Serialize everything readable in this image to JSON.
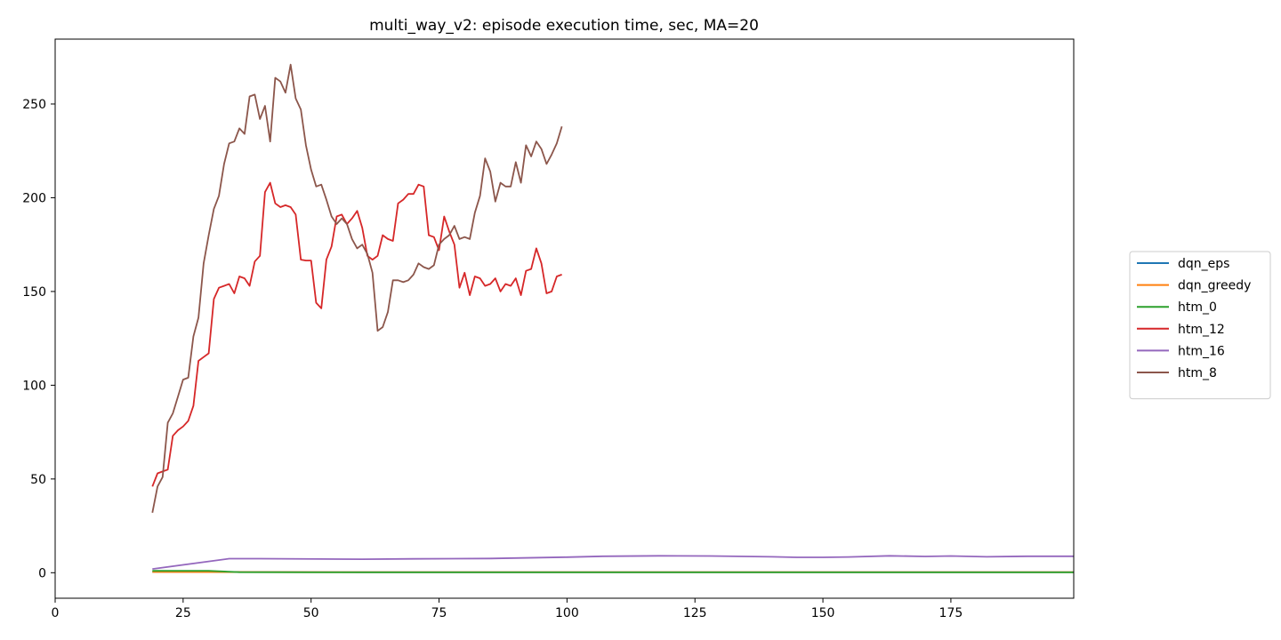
{
  "chart_data": {
    "type": "line",
    "title": "multi_way_v2: episode execution time, sec, MA=20",
    "xlabel": "",
    "ylabel": "",
    "xlim": [
      0,
      199
    ],
    "ylim": [
      -13.6,
      284.6
    ],
    "x_ticks": [
      0,
      25,
      50,
      75,
      100,
      125,
      150,
      175
    ],
    "y_ticks": [
      0,
      50,
      100,
      150,
      200,
      250
    ],
    "grid": false,
    "legend_position": "right",
    "series": [
      {
        "name": "dqn_eps",
        "color": "#1f77b4",
        "points": [
          [
            19,
            0.5
          ],
          [
            60,
            0.3
          ],
          [
            100,
            0.3
          ],
          [
            150,
            0.3
          ],
          [
            199,
            0.3
          ]
        ]
      },
      {
        "name": "dqn_greedy",
        "color": "#ff7f0e",
        "points": [
          [
            19,
            0.4
          ],
          [
            60,
            0.3
          ],
          [
            100,
            0.3
          ],
          [
            150,
            0.3
          ],
          [
            199,
            0.3
          ]
        ]
      },
      {
        "name": "htm_0",
        "color": "#2ca02c",
        "points": [
          [
            19,
            1.0
          ],
          [
            30,
            1.0
          ],
          [
            36,
            0.3
          ],
          [
            50,
            0.2
          ],
          [
            100,
            0.2
          ],
          [
            150,
            0.2
          ],
          [
            199,
            0.2
          ]
        ]
      },
      {
        "name": "htm_12",
        "color": "#d62728",
        "points": [
          [
            19,
            46
          ],
          [
            20,
            53
          ],
          [
            21,
            54
          ],
          [
            22,
            55
          ],
          [
            23,
            73
          ],
          [
            24,
            76
          ],
          [
            25,
            78
          ],
          [
            26,
            81
          ],
          [
            27,
            89
          ],
          [
            28,
            113
          ],
          [
            29,
            115
          ],
          [
            30,
            117
          ],
          [
            31,
            146
          ],
          [
            32,
            152
          ],
          [
            33,
            153
          ],
          [
            34,
            154
          ],
          [
            35,
            149
          ],
          [
            36,
            158
          ],
          [
            37,
            157
          ],
          [
            38,
            153
          ],
          [
            39,
            166
          ],
          [
            40,
            169
          ],
          [
            41,
            203
          ],
          [
            42,
            208
          ],
          [
            43,
            197
          ],
          [
            44,
            195
          ],
          [
            45,
            196
          ],
          [
            46,
            195
          ],
          [
            47,
            191
          ],
          [
            48,
            167
          ],
          [
            49,
            166.5
          ],
          [
            50,
            166.5
          ],
          [
            51,
            144
          ],
          [
            52,
            141
          ],
          [
            53,
            167
          ],
          [
            54,
            174
          ],
          [
            55,
            190
          ],
          [
            56,
            191
          ],
          [
            57,
            186
          ],
          [
            58,
            189
          ],
          [
            59,
            193
          ],
          [
            60,
            184
          ],
          [
            61,
            169
          ],
          [
            62,
            167
          ],
          [
            63,
            169
          ],
          [
            64,
            180
          ],
          [
            65,
            178
          ],
          [
            66,
            177
          ],
          [
            67,
            197
          ],
          [
            68,
            199
          ],
          [
            69,
            202
          ],
          [
            70,
            202
          ],
          [
            71,
            207
          ],
          [
            72,
            206
          ],
          [
            73,
            180
          ],
          [
            74,
            179
          ],
          [
            75,
            172
          ],
          [
            76,
            190
          ],
          [
            77,
            182
          ],
          [
            78,
            175
          ],
          [
            79,
            152
          ],
          [
            80,
            160
          ],
          [
            81,
            148
          ],
          [
            82,
            158
          ],
          [
            83,
            157
          ],
          [
            84,
            153
          ],
          [
            85,
            154
          ],
          [
            86,
            157
          ],
          [
            87,
            150
          ],
          [
            88,
            154
          ],
          [
            89,
            153
          ],
          [
            90,
            157
          ],
          [
            91,
            148
          ],
          [
            92,
            161
          ],
          [
            93,
            162
          ],
          [
            94,
            173
          ],
          [
            95,
            165
          ],
          [
            96,
            149
          ],
          [
            97,
            150
          ],
          [
            98,
            158
          ],
          [
            99,
            159
          ]
        ]
      },
      {
        "name": "htm_16",
        "color": "#9467bd",
        "points": [
          [
            19,
            2
          ],
          [
            34,
            7.5
          ],
          [
            40,
            7.5
          ],
          [
            60,
            7.2
          ],
          [
            70,
            7.4
          ],
          [
            85,
            7.6
          ],
          [
            100,
            8.3
          ],
          [
            107,
            8.8
          ],
          [
            118,
            9.0
          ],
          [
            128,
            8.9
          ],
          [
            140,
            8.5
          ],
          [
            145,
            8.2
          ],
          [
            150,
            8.2
          ],
          [
            155,
            8.4
          ],
          [
            163,
            9.0
          ],
          [
            170,
            8.7
          ],
          [
            175,
            8.9
          ],
          [
            182,
            8.5
          ],
          [
            190,
            8.8
          ],
          [
            199,
            8.8
          ]
        ]
      },
      {
        "name": "htm_8",
        "color": "#8c564b",
        "points": [
          [
            19,
            32
          ],
          [
            20,
            46
          ],
          [
            21,
            51
          ],
          [
            22,
            80
          ],
          [
            23,
            85
          ],
          [
            24,
            94
          ],
          [
            25,
            103
          ],
          [
            26,
            104
          ],
          [
            27,
            126
          ],
          [
            28,
            136
          ],
          [
            29,
            165
          ],
          [
            30,
            180
          ],
          [
            31,
            194
          ],
          [
            32,
            201
          ],
          [
            33,
            218
          ],
          [
            34,
            229
          ],
          [
            35,
            230
          ],
          [
            36,
            237
          ],
          [
            37,
            234
          ],
          [
            38,
            254
          ],
          [
            39,
            255
          ],
          [
            40,
            242
          ],
          [
            41,
            249
          ],
          [
            42,
            230
          ],
          [
            43,
            264
          ],
          [
            44,
            262
          ],
          [
            45,
            256
          ],
          [
            46,
            271
          ],
          [
            47,
            253
          ],
          [
            48,
            247
          ],
          [
            49,
            228
          ],
          [
            50,
            215
          ],
          [
            51,
            206
          ],
          [
            52,
            207
          ],
          [
            53,
            199
          ],
          [
            54,
            190
          ],
          [
            55,
            186
          ],
          [
            56,
            189
          ],
          [
            57,
            186
          ],
          [
            58,
            178
          ],
          [
            59,
            173
          ],
          [
            60,
            175
          ],
          [
            61,
            170
          ],
          [
            62,
            160
          ],
          [
            63,
            129
          ],
          [
            64,
            131
          ],
          [
            65,
            139
          ],
          [
            66,
            156
          ],
          [
            67,
            156
          ],
          [
            68,
            155
          ],
          [
            69,
            156
          ],
          [
            70,
            159
          ],
          [
            71,
            165
          ],
          [
            72,
            163
          ],
          [
            73,
            162
          ],
          [
            74,
            164
          ],
          [
            75,
            175
          ],
          [
            76,
            178
          ],
          [
            77,
            180
          ],
          [
            78,
            185
          ],
          [
            79,
            178
          ],
          [
            80,
            179
          ],
          [
            81,
            178
          ],
          [
            82,
            192
          ],
          [
            83,
            201
          ],
          [
            84,
            221
          ],
          [
            85,
            214
          ],
          [
            86,
            198
          ],
          [
            87,
            208
          ],
          [
            88,
            206
          ],
          [
            89,
            206
          ],
          [
            90,
            219
          ],
          [
            91,
            208
          ],
          [
            92,
            228
          ],
          [
            93,
            222
          ],
          [
            94,
            230
          ],
          [
            95,
            226
          ],
          [
            96,
            218
          ],
          [
            97,
            223
          ],
          [
            98,
            229
          ],
          [
            99,
            238
          ]
        ]
      }
    ]
  }
}
